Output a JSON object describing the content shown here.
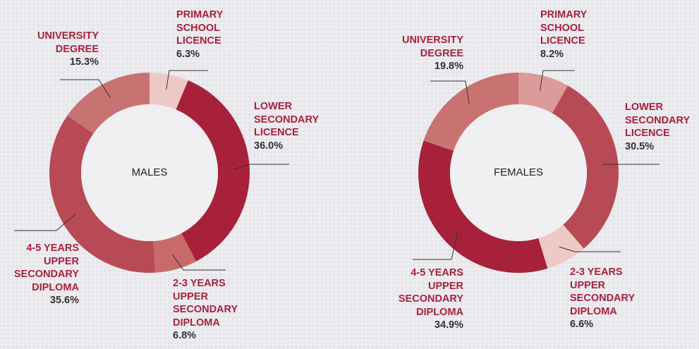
{
  "chart_data": [
    {
      "type": "pie",
      "title": "MALES",
      "categories": [
        "PRIMARY\nSCHOOL\nLICENCE",
        "LOWER\nSECONDARY\nLICENCE",
        "2-3 YEARS\nUPPER\nSECONDARY\nDIPLOMA",
        "4-5 YEARS\nUPPER\nSECONDARY\nDIPLOMA",
        "UNIVERSITY\nDEGREE"
      ],
      "values": [
        6.3,
        36.0,
        6.8,
        35.6,
        15.3
      ],
      "value_labels": [
        "6.3%",
        "36.0%",
        "6.8%",
        "35.6%",
        "15.3%"
      ],
      "colors": [
        "#efc9c6",
        "#a8213b",
        "#c96a6a",
        "#b84a55",
        "#c87372"
      ]
    },
    {
      "type": "pie",
      "title": "FEMALES",
      "categories": [
        "PRIMARY\nSCHOOL\nLICENCE",
        "LOWER\nSECONDARY\nLICENCE",
        "2-3 YEARS\nUPPER\nSECONDARY\nDIPLOMA",
        "4-5 YEARS\nUPPER\nSECONDARY\nDIPLOMA",
        "UNIVERSITY\nDEGREE"
      ],
      "values": [
        8.2,
        30.5,
        6.6,
        34.9,
        19.8
      ],
      "value_labels": [
        "8.2%",
        "30.5%",
        "6.6%",
        "34.9%",
        "19.8%"
      ],
      "colors": [
        "#dc9a98",
        "#b84a55",
        "#efc9c6",
        "#a8213b",
        "#c87372"
      ]
    }
  ]
}
